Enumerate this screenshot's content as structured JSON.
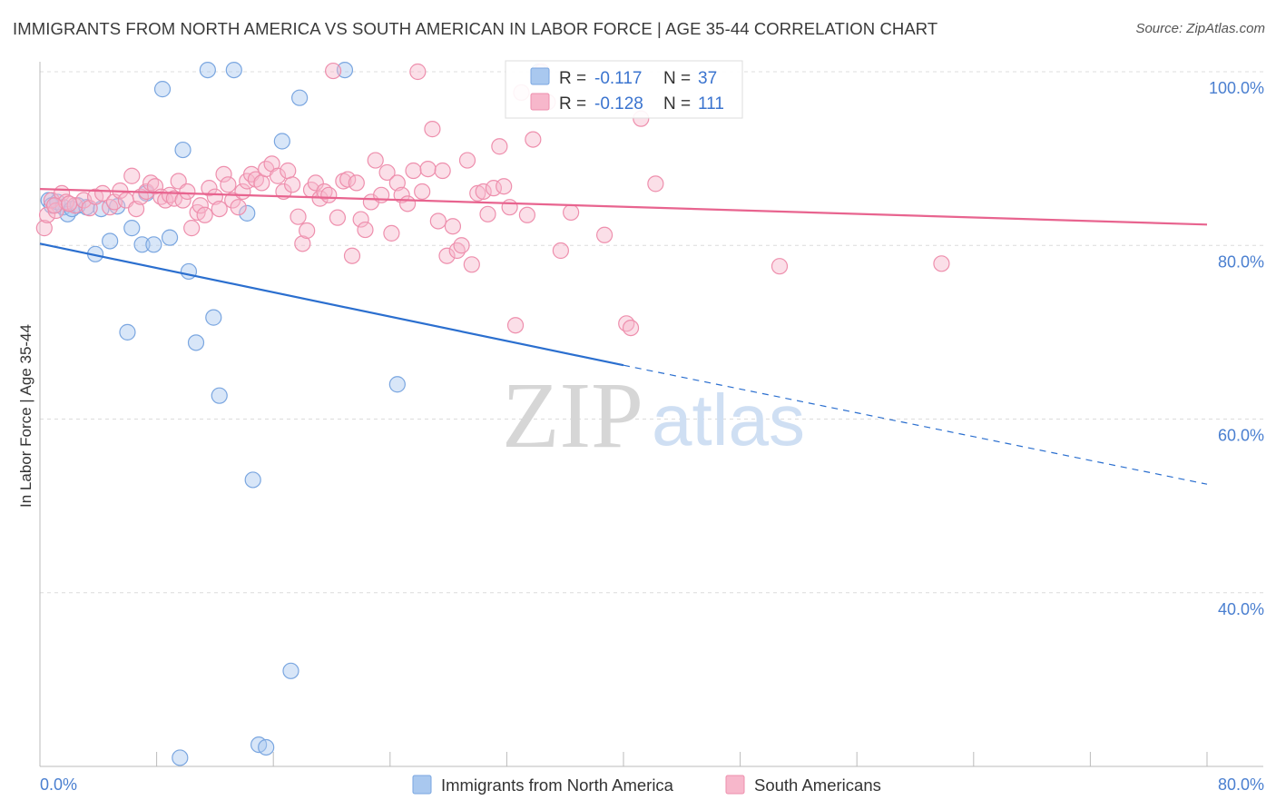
{
  "title": "IMMIGRANTS FROM NORTH AMERICA VS SOUTH AMERICAN IN LABOR FORCE | AGE 35-44 CORRELATION CHART",
  "source": "Source: ZipAtlas.com",
  "watermark": {
    "zip": "ZIP",
    "atlas": "atlas"
  },
  "colors": {
    "blue_fill": "#a9c8ef",
    "blue_stroke": "#7aa6e0",
    "blue_line": "#2b6fcf",
    "pink_fill": "#f7b7cb",
    "pink_stroke": "#ee8fad",
    "pink_line": "#e8648f",
    "grid": "#dcdcdc",
    "tick_text": "#4a7fd0"
  },
  "stats_box": {
    "rows": [
      {
        "r_label": "R =",
        "r_value": "-0.117",
        "n_label": "N =",
        "n_value": "37",
        "series": "blue"
      },
      {
        "r_label": "R =",
        "r_value": "-0.128",
        "n_label": "N =",
        "n_value": "111",
        "series": "pink"
      }
    ]
  },
  "chart_data": {
    "type": "scatter",
    "title": "IMMIGRANTS FROM NORTH AMERICA VS SOUTH AMERICAN IN LABOR FORCE | AGE 35-44 CORRELATION CHART",
    "xlabel": "",
    "ylabel": "In Labor Force | Age 35-44",
    "xlim": [
      0,
      80
    ],
    "ylim": [
      20,
      100
    ],
    "x_ticks": [
      {
        "value": 0,
        "label": "0.0%"
      },
      {
        "value": 80,
        "label": "80.0%"
      }
    ],
    "y_ticks": [
      {
        "value": 100,
        "label": "100.0%"
      },
      {
        "value": 80,
        "label": "80.0%"
      },
      {
        "value": 60,
        "label": "60.0%"
      },
      {
        "value": 40,
        "label": "40.0%"
      }
    ],
    "grid": true,
    "legend_position": "bottom-center",
    "series": [
      {
        "name": "Immigrants from North America",
        "color": "blue",
        "R": -0.117,
        "N": 37,
        "trend": {
          "x0": 0,
          "y0": 80.2,
          "x_solid_end": 40,
          "y_solid_end": 66.2,
          "x1": 80,
          "y1": 52.5
        },
        "points": [
          [
            0.6,
            85.2
          ],
          [
            0.8,
            84.6
          ],
          [
            1.2,
            85.0
          ],
          [
            1.6,
            84.4
          ],
          [
            1.9,
            83.6
          ],
          [
            2.2,
            84.2
          ],
          [
            2.6,
            84.6
          ],
          [
            3.2,
            84.4
          ],
          [
            3.8,
            79.0
          ],
          [
            4.2,
            84.2
          ],
          [
            4.8,
            80.5
          ],
          [
            5.3,
            84.5
          ],
          [
            6.0,
            70.0
          ],
          [
            6.3,
            82.0
          ],
          [
            7.0,
            80.1
          ],
          [
            7.3,
            86.0
          ],
          [
            7.8,
            80.1
          ],
          [
            8.4,
            98.0
          ],
          [
            8.9,
            80.9
          ],
          [
            9.6,
            21.0
          ],
          [
            9.8,
            91.0
          ],
          [
            10.2,
            77.0
          ],
          [
            10.7,
            68.8
          ],
          [
            11.5,
            100.2
          ],
          [
            11.9,
            71.7
          ],
          [
            12.3,
            62.7
          ],
          [
            13.3,
            100.2
          ],
          [
            14.2,
            83.7
          ],
          [
            14.6,
            53.0
          ],
          [
            15.0,
            22.5
          ],
          [
            15.5,
            22.2
          ],
          [
            16.6,
            92.0
          ],
          [
            17.2,
            31.0
          ],
          [
            17.8,
            97.0
          ],
          [
            20.9,
            100.2
          ],
          [
            24.5,
            64.0
          ],
          [
            34.2,
            100.0
          ]
        ]
      },
      {
        "name": "South Americans",
        "color": "pink",
        "R": -0.128,
        "N": 111,
        "trend": {
          "x0": 0,
          "y0": 86.5,
          "x1": 80,
          "y1": 82.4
        },
        "points": [
          [
            0.3,
            82.0
          ],
          [
            0.5,
            83.5
          ],
          [
            0.8,
            85.2
          ],
          [
            1.1,
            84.0
          ],
          [
            1.5,
            86.0
          ],
          [
            1.8,
            85.0
          ],
          [
            2.4,
            84.6
          ],
          [
            3.0,
            85.2
          ],
          [
            3.4,
            84.3
          ],
          [
            3.8,
            85.6
          ],
          [
            4.3,
            86.0
          ],
          [
            4.8,
            84.4
          ],
          [
            5.1,
            85.0
          ],
          [
            5.5,
            86.3
          ],
          [
            5.9,
            85.2
          ],
          [
            6.3,
            88.0
          ],
          [
            6.6,
            84.2
          ],
          [
            6.9,
            85.6
          ],
          [
            7.3,
            86.2
          ],
          [
            7.6,
            87.2
          ],
          [
            7.9,
            86.8
          ],
          [
            8.3,
            85.6
          ],
          [
            8.6,
            85.2
          ],
          [
            8.9,
            85.8
          ],
          [
            9.2,
            85.4
          ],
          [
            9.5,
            87.4
          ],
          [
            9.8,
            85.2
          ],
          [
            10.1,
            86.2
          ],
          [
            10.4,
            82.0
          ],
          [
            10.8,
            83.8
          ],
          [
            11.0,
            84.6
          ],
          [
            11.3,
            83.5
          ],
          [
            11.6,
            86.6
          ],
          [
            12.0,
            85.6
          ],
          [
            12.3,
            84.2
          ],
          [
            12.6,
            88.2
          ],
          [
            12.9,
            87.0
          ],
          [
            13.2,
            85.2
          ],
          [
            13.6,
            84.4
          ],
          [
            13.9,
            86.2
          ],
          [
            14.2,
            87.4
          ],
          [
            14.5,
            88.2
          ],
          [
            14.8,
            87.6
          ],
          [
            15.2,
            87.2
          ],
          [
            15.5,
            88.8
          ],
          [
            15.9,
            89.4
          ],
          [
            16.3,
            88.0
          ],
          [
            16.7,
            86.2
          ],
          [
            17.0,
            88.6
          ],
          [
            17.3,
            87.0
          ],
          [
            17.7,
            83.3
          ],
          [
            18.0,
            80.2
          ],
          [
            18.3,
            81.7
          ],
          [
            18.6,
            86.4
          ],
          [
            18.9,
            87.2
          ],
          [
            19.2,
            85.4
          ],
          [
            19.5,
            86.2
          ],
          [
            19.8,
            85.8
          ],
          [
            20.1,
            100.1
          ],
          [
            20.4,
            83.2
          ],
          [
            20.8,
            87.4
          ],
          [
            21.1,
            87.6
          ],
          [
            21.4,
            78.8
          ],
          [
            21.7,
            87.2
          ],
          [
            22.0,
            83.0
          ],
          [
            22.3,
            81.8
          ],
          [
            22.7,
            85.0
          ],
          [
            23.0,
            89.8
          ],
          [
            23.4,
            85.8
          ],
          [
            23.8,
            88.4
          ],
          [
            24.1,
            81.4
          ],
          [
            24.5,
            87.2
          ],
          [
            24.8,
            85.8
          ],
          [
            25.2,
            84.8
          ],
          [
            25.6,
            88.6
          ],
          [
            25.9,
            100.0
          ],
          [
            26.2,
            86.2
          ],
          [
            26.6,
            88.8
          ],
          [
            26.9,
            93.4
          ],
          [
            27.3,
            82.8
          ],
          [
            27.6,
            88.6
          ],
          [
            27.9,
            78.8
          ],
          [
            28.3,
            82.2
          ],
          [
            28.6,
            79.4
          ],
          [
            28.9,
            80.0
          ],
          [
            29.3,
            89.8
          ],
          [
            29.6,
            77.8
          ],
          [
            30.0,
            86.0
          ],
          [
            30.4,
            86.2
          ],
          [
            30.7,
            83.6
          ],
          [
            31.1,
            86.6
          ],
          [
            31.5,
            91.4
          ],
          [
            31.8,
            86.8
          ],
          [
            32.2,
            84.4
          ],
          [
            32.6,
            70.8
          ],
          [
            33.0,
            97.6
          ],
          [
            33.4,
            83.5
          ],
          [
            33.8,
            92.2
          ],
          [
            34.4,
            100.0
          ],
          [
            34.8,
            96.5
          ],
          [
            35.7,
            79.4
          ],
          [
            36.4,
            83.8
          ],
          [
            38.7,
            81.2
          ],
          [
            40.2,
            71.0
          ],
          [
            40.5,
            70.5
          ],
          [
            41.2,
            94.6
          ],
          [
            42.2,
            87.1
          ],
          [
            50.7,
            77.6
          ],
          [
            61.8,
            77.9
          ],
          [
            1.0,
            84.6
          ],
          [
            2.0,
            84.8
          ]
        ]
      }
    ]
  },
  "legend": [
    {
      "label": "Immigrants from North America",
      "color": "blue"
    },
    {
      "label": "South Americans",
      "color": "pink"
    }
  ]
}
